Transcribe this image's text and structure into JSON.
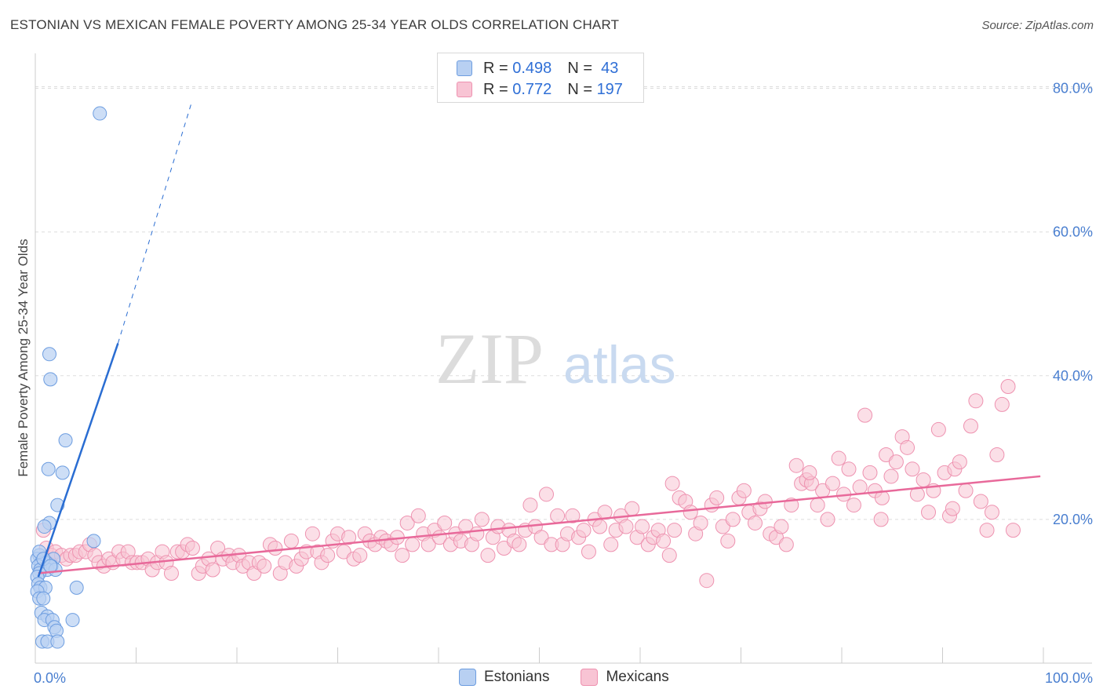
{
  "header": {
    "title": "ESTONIAN VS MEXICAN FEMALE POVERTY AMONG 25-34 YEAR OLDS CORRELATION CHART",
    "source": "Source: ZipAtlas.com"
  },
  "legend": {
    "rows": [
      {
        "r_label": "R =",
        "r_value": "0.498",
        "n_label": "N =",
        "n_value": "43"
      },
      {
        "r_label": "R =",
        "r_value": "0.772",
        "n_label": "N =",
        "n_value": "197"
      }
    ],
    "series": [
      "Estonians",
      "Mexicans"
    ]
  },
  "colors": {
    "estonians_fill": "#b8d0f2",
    "estonians_stroke": "#6d9de0",
    "estonians_line": "#2a6dd2",
    "mexicans_fill": "#f8c4d4",
    "mexicans_stroke": "#ee92b0",
    "mexicans_line": "#e8699a",
    "tick_text": "#4a7fd0"
  },
  "watermark": {
    "zip": "ZIP",
    "atlas": "atlas"
  },
  "chart_data": {
    "type": "scatter",
    "title": "ESTONIAN VS MEXICAN FEMALE POVERTY AMONG 25-34 YEAR OLDS CORRELATION CHART",
    "ylabel": "Female Poverty Among 25-34 Year Olds",
    "xlabel": "",
    "xlim": [
      0,
      100
    ],
    "ylim": [
      0,
      80
    ],
    "x_tick_labels": [
      "0.0%",
      "100.0%"
    ],
    "y_tick_labels": [
      "20.0%",
      "40.0%",
      "60.0%",
      "80.0%"
    ],
    "y_ticks": [
      20,
      40,
      60,
      80
    ],
    "grid": "horizontal dashed",
    "legend_position": "top-center",
    "series": [
      {
        "name": "Estonians",
        "trend": {
          "x0": 0.3,
          "y0": 12.0,
          "x1": 8.2,
          "y1": 44.5,
          "dash_to_x": 15.5,
          "dash_to_y": 78.0
        },
        "points": [
          [
            6.4,
            76.5
          ],
          [
            1.4,
            43.0
          ],
          [
            1.5,
            39.5
          ],
          [
            3.0,
            31.0
          ],
          [
            1.3,
            27.0
          ],
          [
            2.7,
            26.5
          ],
          [
            2.2,
            22.0
          ],
          [
            1.4,
            19.5
          ],
          [
            0.9,
            19.0
          ],
          [
            5.8,
            17.0
          ],
          [
            0.4,
            15.0
          ],
          [
            0.2,
            14.5
          ],
          [
            1.8,
            14.5
          ],
          [
            1.1,
            14.0
          ],
          [
            0.6,
            14.0
          ],
          [
            0.9,
            14.0
          ],
          [
            0.3,
            13.5
          ],
          [
            1.6,
            13.5
          ],
          [
            0.5,
            13.0
          ],
          [
            1.2,
            13.0
          ],
          [
            0.4,
            12.5
          ],
          [
            2.0,
            13.0
          ],
          [
            0.2,
            12.0
          ],
          [
            0.3,
            11.0
          ],
          [
            0.5,
            10.5
          ],
          [
            1.0,
            10.5
          ],
          [
            4.1,
            10.5
          ],
          [
            0.2,
            10.0
          ],
          [
            0.4,
            9.0
          ],
          [
            0.8,
            9.0
          ],
          [
            0.6,
            7.0
          ],
          [
            1.2,
            6.5
          ],
          [
            0.9,
            6.0
          ],
          [
            1.7,
            6.0
          ],
          [
            3.7,
            6.0
          ],
          [
            1.9,
            5.0
          ],
          [
            2.1,
            4.5
          ],
          [
            0.7,
            3.0
          ],
          [
            1.2,
            3.0
          ],
          [
            2.2,
            3.0
          ],
          [
            0.4,
            15.5
          ],
          [
            0.8,
            14.5
          ],
          [
            1.5,
            13.5
          ]
        ]
      },
      {
        "name": "Mexicans",
        "trend": {
          "x0": 0.3,
          "y0": 12.5,
          "x1": 99.7,
          "y1": 26.0
        },
        "points": [
          [
            0.8,
            18.5
          ],
          [
            1.1,
            16.0
          ],
          [
            1.6,
            15.0
          ],
          [
            2.0,
            15.5
          ],
          [
            2.6,
            15.0
          ],
          [
            3.1,
            14.5
          ],
          [
            3.5,
            15.0
          ],
          [
            4.0,
            15.0
          ],
          [
            4.4,
            15.5
          ],
          [
            5.0,
            15.5
          ],
          [
            5.4,
            16.5
          ],
          [
            5.9,
            15.0
          ],
          [
            6.3,
            14.0
          ],
          [
            6.8,
            13.5
          ],
          [
            7.3,
            14.5
          ],
          [
            7.7,
            14.0
          ],
          [
            8.3,
            15.5
          ],
          [
            8.7,
            14.5
          ],
          [
            9.2,
            15.5
          ],
          [
            9.6,
            14.0
          ],
          [
            10.1,
            14.0
          ],
          [
            10.6,
            14.0
          ],
          [
            11.2,
            14.5
          ],
          [
            11.6,
            13.0
          ],
          [
            12.1,
            14.0
          ],
          [
            12.6,
            15.5
          ],
          [
            13.0,
            14.0
          ],
          [
            13.5,
            12.5
          ],
          [
            14.1,
            15.5
          ],
          [
            14.6,
            15.5
          ],
          [
            15.1,
            16.5
          ],
          [
            15.6,
            16.0
          ],
          [
            16.2,
            12.5
          ],
          [
            16.6,
            13.5
          ],
          [
            17.2,
            14.5
          ],
          [
            17.6,
            13.0
          ],
          [
            18.1,
            16.0
          ],
          [
            18.6,
            14.5
          ],
          [
            19.2,
            15.0
          ],
          [
            19.6,
            14.0
          ],
          [
            20.2,
            15.0
          ],
          [
            20.6,
            13.5
          ],
          [
            21.2,
            14.0
          ],
          [
            21.7,
            12.5
          ],
          [
            22.2,
            14.0
          ],
          [
            22.7,
            13.5
          ],
          [
            23.3,
            16.5
          ],
          [
            23.8,
            16.0
          ],
          [
            24.3,
            12.5
          ],
          [
            24.8,
            14.0
          ],
          [
            25.4,
            17.0
          ],
          [
            25.9,
            13.5
          ],
          [
            26.4,
            14.5
          ],
          [
            26.9,
            15.5
          ],
          [
            27.5,
            18.0
          ],
          [
            28.0,
            15.5
          ],
          [
            28.4,
            14.0
          ],
          [
            29.0,
            15.0
          ],
          [
            29.5,
            17.0
          ],
          [
            30.0,
            18.0
          ],
          [
            30.6,
            15.5
          ],
          [
            31.1,
            17.5
          ],
          [
            31.6,
            14.5
          ],
          [
            32.2,
            15.0
          ],
          [
            32.7,
            18.0
          ],
          [
            33.2,
            17.0
          ],
          [
            33.7,
            16.5
          ],
          [
            34.3,
            17.5
          ],
          [
            34.8,
            17.0
          ],
          [
            35.3,
            16.5
          ],
          [
            35.9,
            17.5
          ],
          [
            36.4,
            15.0
          ],
          [
            36.9,
            19.5
          ],
          [
            37.4,
            16.5
          ],
          [
            38.0,
            20.5
          ],
          [
            38.5,
            18.0
          ],
          [
            39.0,
            16.5
          ],
          [
            39.6,
            18.5
          ],
          [
            40.1,
            17.5
          ],
          [
            40.6,
            19.5
          ],
          [
            41.2,
            16.5
          ],
          [
            41.7,
            18.0
          ],
          [
            42.2,
            17.0
          ],
          [
            42.7,
            19.0
          ],
          [
            43.3,
            16.5
          ],
          [
            43.8,
            18.0
          ],
          [
            44.3,
            20.0
          ],
          [
            44.9,
            15.0
          ],
          [
            45.4,
            17.5
          ],
          [
            45.9,
            19.0
          ],
          [
            46.5,
            16.0
          ],
          [
            47.0,
            18.5
          ],
          [
            47.5,
            17.0
          ],
          [
            48.0,
            16.5
          ],
          [
            48.6,
            18.5
          ],
          [
            49.1,
            22.0
          ],
          [
            49.6,
            19.0
          ],
          [
            50.2,
            17.5
          ],
          [
            50.7,
            23.5
          ],
          [
            51.2,
            16.5
          ],
          [
            51.8,
            20.5
          ],
          [
            52.3,
            16.5
          ],
          [
            52.8,
            18.0
          ],
          [
            53.3,
            20.5
          ],
          [
            53.9,
            17.5
          ],
          [
            54.4,
            18.5
          ],
          [
            54.9,
            15.5
          ],
          [
            55.5,
            20.0
          ],
          [
            56.0,
            19.0
          ],
          [
            56.5,
            21.0
          ],
          [
            57.1,
            16.5
          ],
          [
            57.6,
            18.5
          ],
          [
            58.1,
            20.5
          ],
          [
            58.6,
            19.0
          ],
          [
            59.2,
            21.5
          ],
          [
            59.7,
            17.5
          ],
          [
            60.2,
            19.0
          ],
          [
            60.8,
            16.5
          ],
          [
            61.3,
            17.5
          ],
          [
            61.8,
            18.5
          ],
          [
            62.3,
            17.0
          ],
          [
            62.9,
            15.0
          ],
          [
            63.4,
            18.5
          ],
          [
            63.9,
            23.0
          ],
          [
            64.5,
            22.5
          ],
          [
            65.0,
            21.0
          ],
          [
            65.5,
            18.0
          ],
          [
            66.0,
            19.5
          ],
          [
            66.6,
            11.5
          ],
          [
            67.1,
            22.0
          ],
          [
            67.6,
            23.0
          ],
          [
            68.2,
            19.0
          ],
          [
            68.7,
            17.0
          ],
          [
            69.2,
            20.0
          ],
          [
            69.8,
            23.0
          ],
          [
            70.3,
            24.0
          ],
          [
            70.8,
            21.0
          ],
          [
            71.4,
            19.5
          ],
          [
            71.9,
            21.5
          ],
          [
            72.4,
            22.5
          ],
          [
            72.9,
            18.0
          ],
          [
            73.5,
            17.5
          ],
          [
            74.0,
            19.0
          ],
          [
            74.5,
            16.5
          ],
          [
            75.0,
            22.0
          ],
          [
            75.5,
            27.5
          ],
          [
            76.0,
            25.0
          ],
          [
            76.5,
            25.5
          ],
          [
            77.0,
            25.0
          ],
          [
            77.6,
            22.0
          ],
          [
            78.1,
            24.0
          ],
          [
            78.6,
            20.0
          ],
          [
            79.1,
            25.0
          ],
          [
            79.7,
            28.5
          ],
          [
            80.2,
            23.5
          ],
          [
            80.7,
            27.0
          ],
          [
            81.2,
            22.0
          ],
          [
            81.8,
            24.5
          ],
          [
            82.3,
            34.5
          ],
          [
            82.8,
            26.5
          ],
          [
            83.3,
            24.0
          ],
          [
            83.9,
            20.0
          ],
          [
            84.4,
            29.0
          ],
          [
            84.9,
            26.0
          ],
          [
            85.4,
            28.0
          ],
          [
            86.0,
            31.5
          ],
          [
            86.5,
            30.0
          ],
          [
            87.0,
            27.0
          ],
          [
            87.5,
            23.5
          ],
          [
            88.1,
            25.5
          ],
          [
            88.6,
            21.0
          ],
          [
            89.1,
            24.0
          ],
          [
            89.6,
            32.5
          ],
          [
            90.2,
            26.5
          ],
          [
            90.7,
            20.5
          ],
          [
            91.2,
            27.0
          ],
          [
            91.7,
            28.0
          ],
          [
            92.3,
            24.0
          ],
          [
            92.8,
            33.0
          ],
          [
            93.3,
            36.5
          ],
          [
            93.8,
            22.5
          ],
          [
            94.4,
            18.5
          ],
          [
            94.9,
            21.0
          ],
          [
            95.4,
            29.0
          ],
          [
            95.9,
            36.0
          ],
          [
            96.5,
            38.5
          ],
          [
            97.0,
            18.5
          ],
          [
            63.2,
            25.0
          ],
          [
            76.8,
            26.5
          ],
          [
            84.0,
            23.0
          ],
          [
            91.0,
            21.5
          ]
        ]
      }
    ]
  }
}
